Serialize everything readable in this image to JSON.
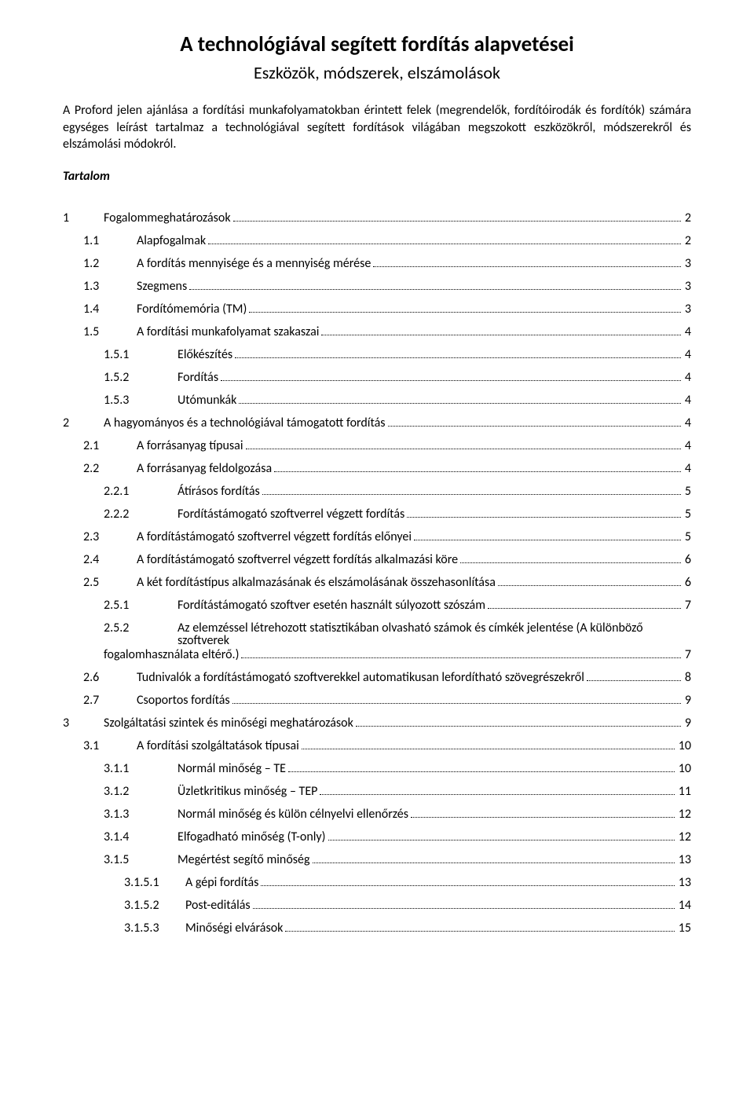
{
  "title": "A technológiával segített fordítás alapvetései",
  "subtitle": "Eszközök, módszerek, elszámolások",
  "intro": "A Proford jelen ajánlása a fordítási munkafolyamatokban érintett felek (megrendelők, fordítóirodák és fordítók) számára egységes leírást tartalmaz a technológiával segített fordítások világában megszokott eszközökről, módszerekről és elszámolási módokról.",
  "tartalom_label": "Tartalom",
  "toc": [
    {
      "lvl": 1,
      "num": "1",
      "text": "Fogalommeghatározások",
      "page": "2"
    },
    {
      "lvl": 2,
      "num": "1.1",
      "text": "Alapfogalmak",
      "page": "2"
    },
    {
      "lvl": 2,
      "num": "1.2",
      "text": "A fordítás mennyisége és a mennyiség mérése",
      "page": "3"
    },
    {
      "lvl": 2,
      "num": "1.3",
      "text": "Szegmens",
      "page": "3"
    },
    {
      "lvl": 2,
      "num": "1.4",
      "text": "Fordítómemória (TM)",
      "page": "3"
    },
    {
      "lvl": 2,
      "num": "1.5",
      "text": "A fordítási munkafolyamat szakaszai",
      "page": "4"
    },
    {
      "lvl": 3,
      "num": "1.5.1",
      "text": "Előkészítés",
      "page": "4"
    },
    {
      "lvl": 3,
      "num": "1.5.2",
      "text": "Fordítás",
      "page": "4"
    },
    {
      "lvl": 3,
      "num": "1.5.3",
      "text": "Utómunkák",
      "page": "4"
    },
    {
      "lvl": 1,
      "num": "2",
      "text": "A hagyományos és a technológiával támogatott fordítás",
      "page": "4"
    },
    {
      "lvl": 2,
      "num": "2.1",
      "text": "A forrásanyag típusai",
      "page": "4"
    },
    {
      "lvl": 2,
      "num": "2.2",
      "text": "A forrásanyag feldolgozása",
      "page": "4"
    },
    {
      "lvl": 3,
      "num": "2.2.1",
      "text": "Átírásos fordítás",
      "page": "5"
    },
    {
      "lvl": 3,
      "num": "2.2.2",
      "text": "Fordítástámogató szoftverrel végzett fordítás",
      "page": "5"
    },
    {
      "lvl": 2,
      "num": "2.3",
      "text": "A fordítástámogató szoftverrel végzett fordítás előnyei",
      "page": "5"
    },
    {
      "lvl": 2,
      "num": "2.4",
      "text": "A fordítástámogató szoftverrel végzett fordítás alkalmazási köre",
      "page": "6"
    },
    {
      "lvl": 2,
      "num": "2.5",
      "text": "A két fordítástípus alkalmazásának és elszámolásának összehasonlítása",
      "page": "6"
    },
    {
      "lvl": 3,
      "num": "2.5.1",
      "text": "Fordítástámogató szoftver esetén használt súlyozott szószám",
      "page": "7"
    },
    {
      "lvl": 3,
      "num": "2.5.2",
      "text": "Az elemzéssel létrehozott statisztikában olvasható számok és címkék jelentése (A különböző szoftverek",
      "cont": "fogalomhasználata eltérő.)",
      "page": "7",
      "wrap": true
    },
    {
      "lvl": 2,
      "num": "2.6",
      "text": "Tudnivalók a fordítástámogató szoftverekkel automatikusan lefordítható szövegrészekről",
      "page": "8"
    },
    {
      "lvl": 2,
      "num": "2.7",
      "text": "Csoportos fordítás",
      "page": "9"
    },
    {
      "lvl": 1,
      "num": "3",
      "text": "Szolgáltatási szintek és minőségi meghatározások",
      "page": "9"
    },
    {
      "lvl": 2,
      "num": "3.1",
      "text": "A fordítási szolgáltatások típusai",
      "page": "10"
    },
    {
      "lvl": 3,
      "num": "3.1.1",
      "text": "Normál minőség – TE",
      "page": "10"
    },
    {
      "lvl": 3,
      "num": "3.1.2",
      "text": "Üzletkritikus minőség – TEP",
      "page": "11"
    },
    {
      "lvl": 3,
      "num": "3.1.3",
      "text": "Normál minőség és külön célnyelvi ellenőrzés",
      "page": "12"
    },
    {
      "lvl": 3,
      "num": "3.1.4",
      "text": "Elfogadható minőség (T-only)",
      "page": "12"
    },
    {
      "lvl": 3,
      "num": "3.1.5",
      "text": "Megértést segítő minőség",
      "page": "13"
    },
    {
      "lvl": 4,
      "num": "3.1.5.1",
      "text": "A gépi fordítás",
      "page": "13"
    },
    {
      "lvl": 4,
      "num": "3.1.5.2",
      "text": "Post-editálás",
      "page": "14"
    },
    {
      "lvl": 4,
      "num": "3.1.5.3",
      "text": "Minőségi elvárások",
      "page": "15"
    }
  ]
}
